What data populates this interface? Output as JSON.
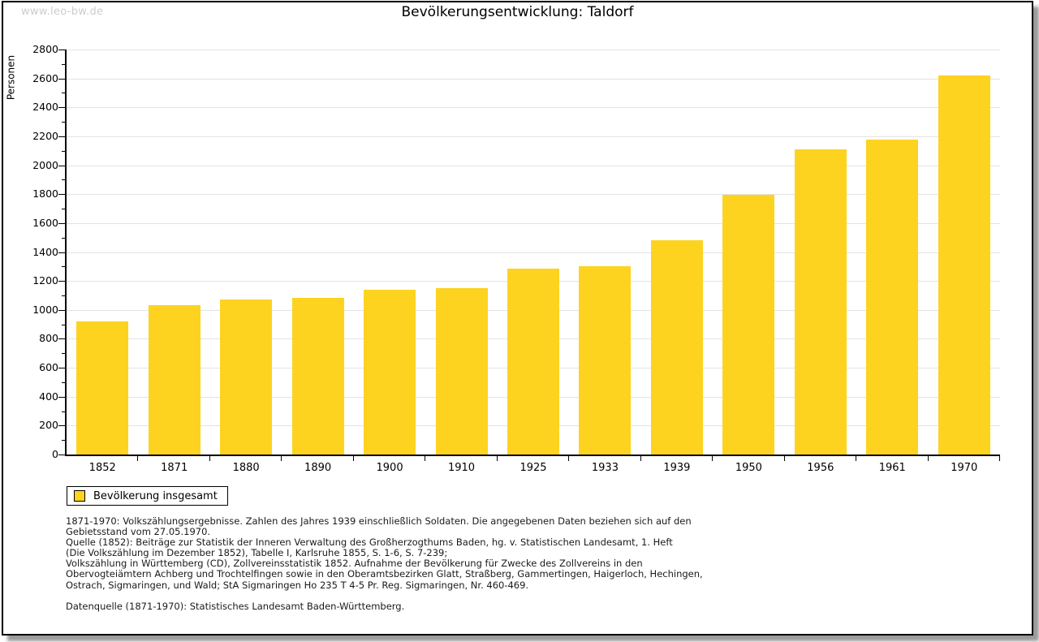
{
  "window": {
    "watermark": "www.leo-bw.de"
  },
  "chart_data": {
    "type": "bar",
    "title": "Bevölkerungsentwicklung: Taldorf",
    "xlabel": "",
    "ylabel": "Personen",
    "categories": [
      "1852",
      "1871",
      "1880",
      "1890",
      "1900",
      "1910",
      "1925",
      "1933",
      "1939",
      "1950",
      "1956",
      "1961",
      "1970"
    ],
    "values": [
      920,
      1035,
      1070,
      1085,
      1140,
      1150,
      1285,
      1300,
      1480,
      1795,
      2110,
      2175,
      2620
    ],
    "series_name": "Bevölkerung insgesamt",
    "ylim": [
      0,
      2800
    ],
    "ytick_step": 200,
    "y_minor_tick_step": 100,
    "grid": true,
    "legend_position": "bottom-left",
    "bar_color": "#fdd320",
    "gridline_color": "#e3e3e3"
  },
  "legend": {
    "label": "Bevölkerung insgesamt"
  },
  "footnotes": {
    "lines": [
      "1871-1970: Volkszählungsergebnisse. Zahlen des Jahres 1939 einschließlich Soldaten. Die angegebenen Daten beziehen sich auf den",
      "Gebietsstand vom 27.05.1970.",
      "Quelle (1852): Beiträge zur Statistik der Inneren Verwaltung des Großherzogthums Baden, hg. v. Statistischen Landesamt, 1. Heft",
      "(Die Volkszählung im Dezember 1852), Tabelle I, Karlsruhe 1855, S. 1-6, S. 7-239;",
      "Volkszählung in Württemberg (CD), Zollvereinsstatistik 1852. Aufnahme der Bevölkerung für Zwecke des Zollvereins in den",
      "Obervogteiämtern Achberg und Trochtelfingen sowie in den Oberamtsbezirken Glatt, Straßberg, Gammertingen, Haigerloch, Hechingen,",
      "Ostrach, Sigmaringen, und Wald; StA Sigmaringen Ho 235 T 4-5 Pr. Reg. Sigmaringen, Nr. 460-469."
    ],
    "datasource": "Datenquelle (1871-1970): Statistisches Landesamt Baden-Württemberg."
  }
}
